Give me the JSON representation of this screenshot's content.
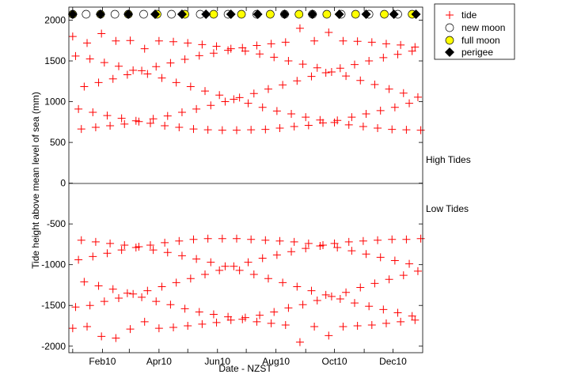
{
  "chart_data": {
    "type": "scatter",
    "xlabel": "Date - NZST",
    "ylabel": "Tide height above mean level of sea (mm)",
    "xlim": [
      "2009-12-28",
      "2011-01-01"
    ],
    "ylim": [
      -2080,
      2160
    ],
    "yticks": [
      -2000,
      -1500,
      -1000,
      -500,
      0,
      500,
      1000,
      1500,
      2000
    ],
    "xticks": [
      "2010-01-01",
      "2010-02-01",
      "2010-03-01",
      "2010-04-01",
      "2010-05-01",
      "2010-06-01",
      "2010-07-01",
      "2010-08-01",
      "2010-09-01",
      "2010-10-01",
      "2010-11-01",
      "2010-12-01"
    ],
    "xtick_labels": [
      {
        "date": "2010-02-01",
        "label": "Feb10"
      },
      {
        "date": "2010-04-01",
        "label": "Apr10"
      },
      {
        "date": "2010-06-01",
        "label": "Jun10"
      },
      {
        "date": "2010-08-01",
        "label": "Aug10"
      },
      {
        "date": "2010-10-01",
        "label": "Oct10"
      },
      {
        "date": "2010-12-01",
        "label": "Dec10"
      }
    ],
    "annotations": {
      "high": "High Tides",
      "low": "Low Tides"
    },
    "zero_line": true,
    "grid": false,
    "legend_placement": "outside-top-right",
    "legend": [
      {
        "key": "tide",
        "label": "tide"
      },
      {
        "key": "new_moon",
        "label": "new moon"
      },
      {
        "key": "full_moon",
        "label": "full moon"
      },
      {
        "key": "perigee",
        "label": "perigee"
      }
    ],
    "colors": {
      "tide": "#ff0000",
      "full_moon": "#ffff00",
      "new_moon": "#ffffff",
      "perigee": "#000000"
    },
    "events": {
      "new_moon": [
        "2010-01-15",
        "2010-02-14",
        "2010-03-16",
        "2010-04-14",
        "2010-05-14",
        "2010-06-12",
        "2010-07-12",
        "2010-08-10",
        "2010-09-08",
        "2010-10-08",
        "2010-11-06",
        "2010-12-06"
      ],
      "full_moon": [
        "2010-01-01",
        "2010-01-30",
        "2010-02-28",
        "2010-03-30",
        "2010-04-28",
        "2010-05-28",
        "2010-06-26",
        "2010-07-26",
        "2010-08-25",
        "2010-09-23",
        "2010-10-23",
        "2010-11-22",
        "2010-12-21"
      ],
      "perigee": [
        "2010-01-01",
        "2010-01-30",
        "2010-02-28",
        "2010-03-28",
        "2010-04-25",
        "2010-05-20",
        "2010-06-15",
        "2010-07-13",
        "2010-08-10",
        "2010-09-08",
        "2010-10-06",
        "2010-11-03",
        "2010-12-02",
        "2010-12-25"
      ]
    },
    "tide_dates": [
      "2010-01-01",
      "2010-01-04",
      "2010-01-07",
      "2010-01-10",
      "2010-01-13",
      "2010-01-16",
      "2010-01-19",
      "2010-01-22",
      "2010-01-25",
      "2010-01-28",
      "2010-01-31",
      "2010-02-03",
      "2010-02-06",
      "2010-02-09",
      "2010-02-12",
      "2010-02-15",
      "2010-02-18",
      "2010-02-21",
      "2010-02-24",
      "2010-02-27",
      "2010-03-02",
      "2010-03-05",
      "2010-03-08",
      "2010-03-11",
      "2010-03-14",
      "2010-03-17",
      "2010-03-20",
      "2010-03-23",
      "2010-03-26",
      "2010-03-29",
      "2010-04-01",
      "2010-04-04",
      "2010-04-07",
      "2010-04-10",
      "2010-04-13",
      "2010-04-16",
      "2010-04-19",
      "2010-04-22",
      "2010-04-25",
      "2010-04-28",
      "2010-05-01",
      "2010-05-04",
      "2010-05-07",
      "2010-05-10",
      "2010-05-13",
      "2010-05-16",
      "2010-05-19",
      "2010-05-22",
      "2010-05-25",
      "2010-05-28",
      "2010-05-31",
      "2010-06-03",
      "2010-06-06",
      "2010-06-09",
      "2010-06-12",
      "2010-06-15",
      "2010-06-18",
      "2010-06-21",
      "2010-06-24",
      "2010-06-27",
      "2010-06-30",
      "2010-07-03",
      "2010-07-06",
      "2010-07-09",
      "2010-07-12",
      "2010-07-15",
      "2010-07-18",
      "2010-07-21",
      "2010-07-24",
      "2010-07-27",
      "2010-07-30",
      "2010-08-02",
      "2010-08-05",
      "2010-08-08",
      "2010-08-11",
      "2010-08-14",
      "2010-08-17",
      "2010-08-20",
      "2010-08-23",
      "2010-08-26",
      "2010-08-29",
      "2010-09-01",
      "2010-09-04",
      "2010-09-07",
      "2010-09-10",
      "2010-09-13",
      "2010-09-16",
      "2010-09-19",
      "2010-09-22",
      "2010-09-25",
      "2010-09-28",
      "2010-10-01",
      "2010-10-04",
      "2010-10-07",
      "2010-10-10",
      "2010-10-13",
      "2010-10-16",
      "2010-10-19",
      "2010-10-22",
      "2010-10-25",
      "2010-10-28",
      "2010-10-31",
      "2010-11-03",
      "2010-11-06",
      "2010-11-09",
      "2010-11-12",
      "2010-11-15",
      "2010-11-18",
      "2010-11-21",
      "2010-11-24",
      "2010-11-27",
      "2010-11-30",
      "2010-12-03",
      "2010-12-06",
      "2010-12-09",
      "2010-12-12",
      "2010-12-15",
      "2010-12-18",
      "2010-12-21",
      "2010-12-24",
      "2010-12-27",
      "2010-12-30"
    ],
    "high_tides": [
      1800,
      1560,
      910,
      665,
      1185,
      1720,
      1525,
      870,
      685,
      1235,
      1835,
      1480,
      830,
      705,
      1280,
      1745,
      1435,
      795,
      725,
      1330,
      1750,
      1385,
      765,
      755,
      1380,
      1650,
      1340,
      735,
      790,
      1430,
      1745,
      1290,
      705,
      825,
      1475,
      1735,
      1235,
      685,
      870,
      1520,
      1720,
      1185,
      665,
      910,
      1565,
      1700,
      1130,
      655,
      955,
      1595,
      1680,
      1080,
      650,
      1000,
      1630,
      1650,
      1030,
      650,
      1050,
      1660,
      1620,
      980,
      655,
      1100,
      1690,
      1585,
      930,
      660,
      1155,
      1710,
      1545,
      885,
      675,
      1205,
      1730,
      1500,
      850,
      695,
      1255,
      1900,
      1460,
      810,
      710,
      1310,
      1745,
      1415,
      775,
      740,
      1355,
      1850,
      1365,
      745,
      770,
      1410,
      1745,
      1315,
      715,
      810,
      1455,
      1740,
      1260,
      695,
      850,
      1500,
      1730,
      1210,
      675,
      890,
      1540,
      1710,
      1155,
      660,
      930,
      1580,
      1695,
      1105,
      655,
      980,
      1620,
      1670,
      1055,
      650
    ],
    "low_tides": [
      -1780,
      -1520,
      -940,
      -700,
      -1210,
      -1760,
      -1500,
      -900,
      -720,
      -1260,
      -1880,
      -1450,
      -860,
      -740,
      -1300,
      -1900,
      -1410,
      -820,
      -760,
      -1350,
      -1790,
      -1360,
      -790,
      -780,
      -1400,
      -1700,
      -1320,
      -760,
      -820,
      -1450,
      -1780,
      -1270,
      -730,
      -850,
      -1490,
      -1770,
      -1220,
      -710,
      -890,
      -1540,
      -1750,
      -1170,
      -690,
      -930,
      -1580,
      -1730,
      -1120,
      -680,
      -970,
      -1610,
      -1710,
      -1070,
      -680,
      -1020,
      -1640,
      -1680,
      -1020,
      -680,
      -1070,
      -1670,
      -1650,
      -970,
      -690,
      -1120,
      -1700,
      -1620,
      -920,
      -700,
      -1170,
      -1720,
      -1580,
      -880,
      -710,
      -1220,
      -1740,
      -1530,
      -840,
      -720,
      -1270,
      -1950,
      -1490,
      -800,
      -740,
      -1320,
      -1760,
      -1440,
      -770,
      -760,
      -1370,
      -1870,
      -1390,
      -740,
      -790,
      -1420,
      -1760,
      -1340,
      -720,
      -830,
      -1470,
      -1750,
      -1280,
      -710,
      -870,
      -1510,
      -1740,
      -1230,
      -700,
      -910,
      -1550,
      -1720,
      -1180,
      -690,
      -950,
      -1590,
      -1700,
      -1130,
      -690,
      -990,
      -1630,
      -1680,
      -1080,
      -680
    ]
  }
}
